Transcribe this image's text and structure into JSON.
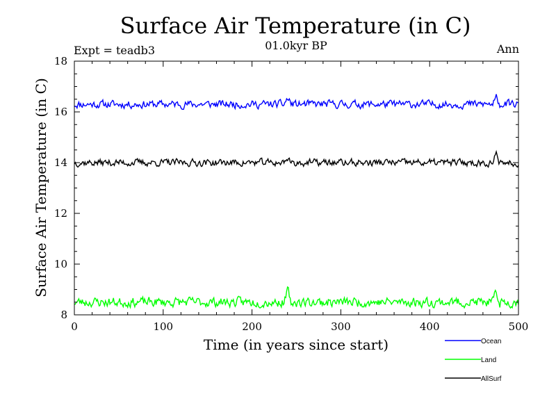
{
  "chart_data": {
    "type": "line",
    "title": "Surface Air Temperature (in C)",
    "subtitle": "01.0kyr BP",
    "left_label": "Expt = teadb3",
    "right_label": "Ann",
    "xlabel": "Time (in years since start)",
    "ylabel": "Surface Air Temperature (in C)",
    "xlim": [
      0,
      500
    ],
    "ylim": [
      8,
      18
    ],
    "xticks": [
      0,
      100,
      200,
      300,
      400,
      500
    ],
    "yticks": [
      8,
      10,
      12,
      14,
      16,
      18
    ],
    "grid": false,
    "legend_position": "bottom-right",
    "series": [
      {
        "name": "Ocean",
        "color": "#0000ff",
        "mean": 16.3,
        "amplitude": 0.13,
        "events": [
          [
            240,
            0.25
          ],
          [
            475,
            0.28
          ]
        ],
        "seed": 11
      },
      {
        "name": "Land",
        "color": "#00ff00",
        "mean": 8.5,
        "amplitude": 0.16,
        "events": [
          [
            240,
            0.6
          ],
          [
            475,
            0.45
          ]
        ],
        "seed": 23
      },
      {
        "name": "AllSurf",
        "color": "#000000",
        "mean": 14.0,
        "amplitude": 0.12,
        "events": [
          [
            240,
            0.35
          ],
          [
            475,
            0.35
          ]
        ],
        "seed": 37
      }
    ]
  }
}
